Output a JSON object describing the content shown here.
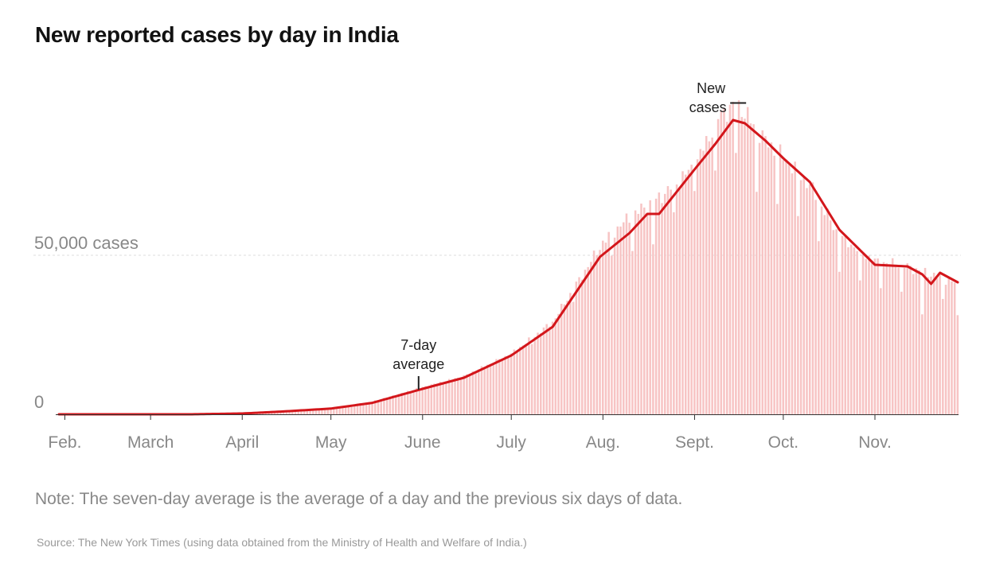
{
  "header": {
    "title": "New reported cases by day in India"
  },
  "footer": {
    "note": "Note: The seven-day average is the average of a day and the previous six days of data.",
    "source": "Source: The New York Times (using data obtained from the Ministry of Health and Welfare of India.)"
  },
  "colors": {
    "bars": "#f7c4c4",
    "average_line": "#d3161b",
    "gridline": "#dddddd",
    "axis": "#333333",
    "muted_text": "#888888"
  },
  "chart_data": {
    "type": "bar",
    "x_start": "2020-01-30",
    "x_end": "2020-11-29",
    "x_tick_labels": [
      "Feb.",
      "March",
      "April",
      "May",
      "June",
      "July",
      "Aug.",
      "Sept.",
      "Oct.",
      "Nov."
    ],
    "y_tick_labels": [
      {
        "value": 0,
        "label": "0"
      },
      {
        "value": 50000,
        "label": "50,000 cases"
      }
    ],
    "ylim": [
      0,
      100000
    ],
    "series": [
      {
        "type": "bar",
        "name": "New cases",
        "daily_values_from_keypoints": [
          [
            "2020-01-30",
            0
          ],
          [
            "2020-03-15",
            20
          ],
          [
            "2020-04-01",
            300
          ],
          [
            "2020-04-15",
            1000
          ],
          [
            "2020-05-01",
            2000
          ],
          [
            "2020-05-15",
            4000
          ],
          [
            "2020-06-01",
            8500
          ],
          [
            "2020-06-15",
            12000
          ],
          [
            "2020-07-01",
            19000
          ],
          [
            "2020-07-15",
            29000
          ],
          [
            "2020-08-01",
            54000
          ],
          [
            "2020-08-10",
            62000
          ],
          [
            "2020-08-20",
            68000
          ],
          [
            "2020-09-01",
            78000
          ],
          [
            "2020-09-10",
            95000
          ],
          [
            "2020-09-16",
            97000
          ],
          [
            "2020-09-25",
            86000
          ],
          [
            "2020-10-01",
            81000
          ],
          [
            "2020-10-10",
            72000
          ],
          [
            "2020-10-20",
            56000
          ],
          [
            "2020-11-01",
            48000
          ],
          [
            "2020-11-10",
            47000
          ],
          [
            "2020-11-20",
            44000
          ],
          [
            "2020-11-29",
            41000
          ]
        ],
        "weekly_dips": [
          [
            "2020-07-08",
            0.92
          ],
          [
            "2020-07-22",
            0.9
          ],
          [
            "2020-08-04",
            0.88
          ],
          [
            "2020-08-11",
            0.82
          ],
          [
            "2020-08-18",
            0.8
          ],
          [
            "2020-08-25",
            0.88
          ],
          [
            "2020-09-01",
            0.9
          ],
          [
            "2020-09-08",
            0.84
          ],
          [
            "2020-09-15",
            0.85
          ],
          [
            "2020-09-22",
            0.78
          ],
          [
            "2020-09-29",
            0.8
          ],
          [
            "2020-10-06",
            0.82
          ],
          [
            "2020-10-13",
            0.81
          ],
          [
            "2020-10-20",
            0.8
          ],
          [
            "2020-10-27",
            0.82
          ],
          [
            "2020-11-03",
            0.83
          ],
          [
            "2020-11-10",
            0.82
          ],
          [
            "2020-11-17",
            0.7
          ],
          [
            "2020-11-24",
            0.85
          ],
          [
            "2020-11-29",
            0.76
          ]
        ]
      },
      {
        "type": "line",
        "name": "7-day average",
        "points": [
          [
            "2020-01-30",
            0
          ],
          [
            "2020-03-15",
            15
          ],
          [
            "2020-04-01",
            250
          ],
          [
            "2020-04-15",
            900
          ],
          [
            "2020-05-01",
            1800
          ],
          [
            "2020-05-15",
            3600
          ],
          [
            "2020-06-01",
            8000
          ],
          [
            "2020-06-15",
            11500
          ],
          [
            "2020-07-01",
            18500
          ],
          [
            "2020-07-15",
            27500
          ],
          [
            "2020-07-31",
            49500
          ],
          [
            "2020-08-10",
            57000
          ],
          [
            "2020-08-16",
            63000
          ],
          [
            "2020-08-20",
            63000
          ],
          [
            "2020-09-01",
            77000
          ],
          [
            "2020-09-08",
            85000
          ],
          [
            "2020-09-14",
            92500
          ],
          [
            "2020-09-18",
            91500
          ],
          [
            "2020-09-25",
            86000
          ],
          [
            "2020-10-01",
            80500
          ],
          [
            "2020-10-10",
            73000
          ],
          [
            "2020-10-20",
            58000
          ],
          [
            "2020-11-01",
            47000
          ],
          [
            "2020-11-12",
            46500
          ],
          [
            "2020-11-17",
            44000
          ],
          [
            "2020-11-20",
            41000
          ],
          [
            "2020-11-23",
            44500
          ],
          [
            "2020-11-29",
            41500
          ]
        ]
      }
    ],
    "annotations": [
      {
        "lines": [
          "New",
          "cases"
        ],
        "date": "2020-09-16"
      },
      {
        "lines": [
          "7-day",
          "average"
        ],
        "date": "2020-06-01"
      }
    ]
  }
}
